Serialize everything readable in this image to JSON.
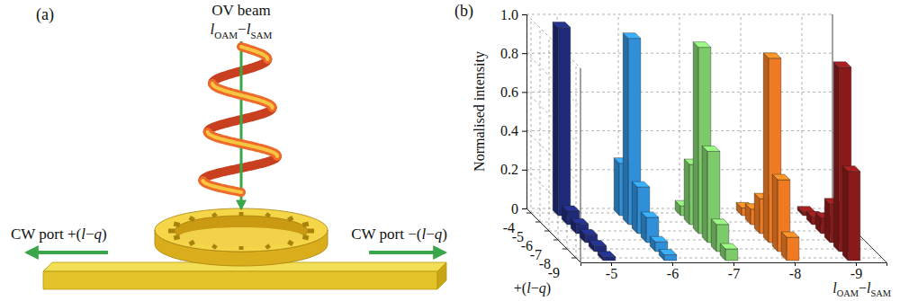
{
  "diagram": {
    "letter": "(a)",
    "beam": {
      "label": "OV beam",
      "mode": [
        {
          "text": "l",
          "italic": true
        },
        {
          "text": "OAM",
          "sub": true
        },
        {
          "text": "−"
        },
        {
          "text": "l",
          "italic": true
        },
        {
          "text": "SAM",
          "sub": true
        }
      ]
    },
    "ports": [
      {
        "side": "left",
        "label": [
          {
            "text": "CW port +("
          },
          {
            "text": "l",
            "italic": true
          },
          {
            "text": "−"
          },
          {
            "text": "q",
            "italic": true
          },
          {
            "text": ")"
          }
        ]
      },
      {
        "side": "right",
        "label": [
          {
            "text": "CW port −("
          },
          {
            "text": "l",
            "italic": true
          },
          {
            "text": "−"
          },
          {
            "text": "q",
            "italic": true
          },
          {
            "text": ")"
          }
        ]
      }
    ]
  },
  "chart_data": {
    "type": "bar3d",
    "letter": "(b)",
    "ylabel": "Normalised intensity",
    "xlabel": [
      {
        "text": "+("
      },
      {
        "text": "l",
        "italic": true
      },
      {
        "text": "−"
      },
      {
        "text": "q",
        "italic": true
      },
      {
        "text": ")"
      }
    ],
    "depth_label": [
      {
        "text": "l",
        "italic": true
      },
      {
        "text": "OAM",
        "sub": true
      },
      {
        "text": "−"
      },
      {
        "text": "l",
        "italic": true
      },
      {
        "text": "SAM",
        "sub": true
      }
    ],
    "categories": [
      "-4",
      "-5",
      "-6",
      "-7",
      "-8",
      "-9"
    ],
    "series": [
      {
        "name": "-5",
        "color": "#1f2a78",
        "values": [
          0.97,
          0.07,
          0.05,
          0.04,
          0.03,
          0.02
        ]
      },
      {
        "name": "-6",
        "color": "#2f8fd8",
        "values": [
          0.27,
          0.96,
          0.24,
          0.13,
          0.05,
          0.03
        ]
      },
      {
        "name": "-7",
        "color": "#7dca6a",
        "values": [
          0.05,
          0.31,
          0.96,
          0.47,
          0.14,
          0.06
        ]
      },
      {
        "name": "-8",
        "color": "#f07a22",
        "values": [
          0.04,
          0.08,
          0.18,
          0.95,
          0.37,
          0.12
        ]
      },
      {
        "name": "-9",
        "color": "#8a1a1a",
        "values": [
          0.02,
          0.04,
          0.08,
          0.2,
          0.95,
          0.46
        ]
      }
    ],
    "ylim": [
      0,
      1
    ],
    "yticks": [
      0,
      0.2,
      0.4,
      0.6,
      0.8,
      {
        "value": 1,
        "label": "1.0"
      }
    ],
    "grid": true
  }
}
